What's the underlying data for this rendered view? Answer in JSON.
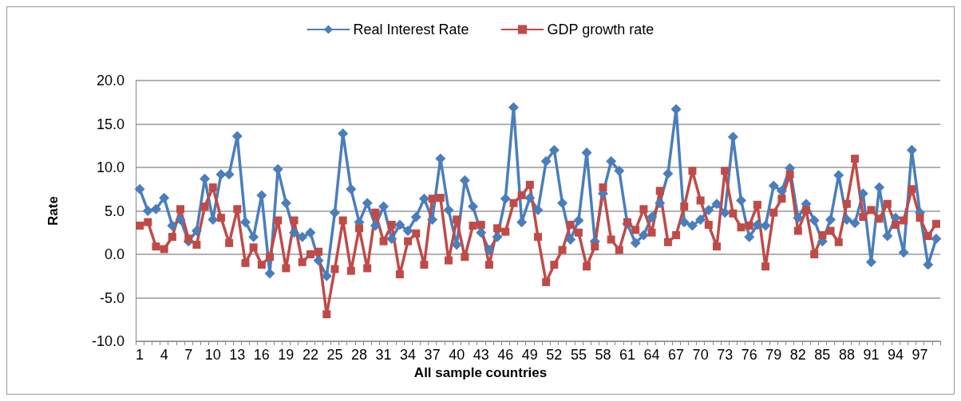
{
  "chart_data": {
    "type": "line",
    "xlabel": "All sample countries",
    "ylabel": "Rate",
    "categories": [
      "1",
      null,
      null,
      "4",
      null,
      null,
      "7",
      null,
      null,
      "10",
      null,
      null,
      "13",
      null,
      null,
      "16",
      null,
      null,
      "19",
      null,
      null,
      "22",
      null,
      null,
      "25",
      null,
      null,
      "28",
      null,
      null,
      "31",
      null,
      null,
      "34",
      null,
      null,
      "37",
      null,
      null,
      "40",
      null,
      null,
      "43",
      null,
      null,
      "46",
      null,
      null,
      "49",
      null,
      null,
      "52",
      null,
      null,
      "55",
      null,
      null,
      "58",
      null,
      null,
      "61",
      null,
      null,
      "64",
      null,
      null,
      "67",
      null,
      null,
      "70",
      null,
      null,
      "73",
      null,
      null,
      "76",
      null,
      null,
      "79",
      null,
      null,
      "82",
      null,
      null,
      "85",
      null,
      null,
      "88",
      null,
      null,
      "91",
      null,
      null,
      "94",
      null,
      null,
      "97",
      null,
      null
    ],
    "series": [
      {
        "name": "Real Interest Rate",
        "color": "#4a7ebb",
        "marker": "diamond",
        "values": [
          7.5,
          5.0,
          5.2,
          6.5,
          3.3,
          4.0,
          1.5,
          2.7,
          8.7,
          4.0,
          9.2,
          9.2,
          13.6,
          3.7,
          2.0,
          6.8,
          -2.2,
          9.8,
          5.9,
          2.5,
          2.0,
          2.5,
          -0.7,
          -2.5,
          4.8,
          13.9,
          7.5,
          3.7,
          5.9,
          3.3,
          5.5,
          1.8,
          3.4,
          2.7,
          4.3,
          6.4,
          4.0,
          11.0,
          5.1,
          1.1,
          8.5,
          5.5,
          2.5,
          0.5,
          2.0,
          6.4,
          16.9,
          3.7,
          6.5,
          5.1,
          10.7,
          12.0,
          5.9,
          1.7,
          3.9,
          11.7,
          1.5,
          7.0,
          10.7,
          9.6,
          3.5,
          1.3,
          2.2,
          4.3,
          5.9,
          9.3,
          16.7,
          3.7,
          3.3,
          4.0,
          5.1,
          5.8,
          4.8,
          13.5,
          6.2,
          2.0,
          3.4,
          3.3,
          7.9,
          7.3,
          9.9,
          4.2,
          5.8,
          3.9,
          1.5,
          4.0,
          9.1,
          4.0,
          3.6,
          7.0,
          -0.9,
          7.7,
          2.1,
          4.2,
          0.2,
          12.0,
          4.8,
          -1.2,
          1.8
        ]
      },
      {
        "name": "GDP growth rate",
        "color": "#be4b48",
        "marker": "square",
        "values": [
          3.3,
          3.7,
          0.9,
          0.6,
          2.0,
          5.2,
          1.8,
          1.1,
          5.5,
          7.7,
          4.2,
          1.3,
          5.2,
          -1.0,
          0.8,
          -1.2,
          -0.3,
          3.9,
          -1.6,
          3.9,
          -0.9,
          0.0,
          0.3,
          -6.9,
          -1.7,
          3.9,
          -1.9,
          3.0,
          -1.6,
          4.8,
          1.5,
          3.4,
          -2.3,
          1.5,
          2.4,
          -1.2,
          6.4,
          6.5,
          -0.7,
          4.0,
          -0.3,
          3.3,
          3.4,
          -1.2,
          3.0,
          2.6,
          5.9,
          6.8,
          8.0,
          2.0,
          -3.2,
          -1.2,
          0.5,
          3.4,
          2.5,
          -1.4,
          0.9,
          7.7,
          1.7,
          0.5,
          3.7,
          2.8,
          5.2,
          2.5,
          7.3,
          1.4,
          2.2,
          5.5,
          9.6,
          6.2,
          3.4,
          0.9,
          9.6,
          4.7,
          3.1,
          3.3,
          5.7,
          -1.4,
          4.8,
          6.4,
          9.2,
          2.7,
          5.1,
          0.0,
          2.2,
          2.7,
          1.4,
          5.8,
          11.0,
          4.3,
          5.1,
          4.1,
          5.8,
          3.4,
          3.9,
          7.5,
          4.2,
          2.1,
          3.5
        ]
      }
    ],
    "ylim": [
      -10,
      20
    ],
    "yticks": [
      {
        "value": -10,
        "label": "-10.0"
      },
      {
        "value": -5,
        "label": "-5.0"
      },
      {
        "value": 0,
        "label": "0.0"
      },
      {
        "value": 5,
        "label": "5.0"
      },
      {
        "value": 10,
        "label": "10.0"
      },
      {
        "value": 15,
        "label": "15.0"
      },
      {
        "value": 20,
        "label": "20.0"
      }
    ],
    "grid": "y",
    "legend": "top"
  }
}
